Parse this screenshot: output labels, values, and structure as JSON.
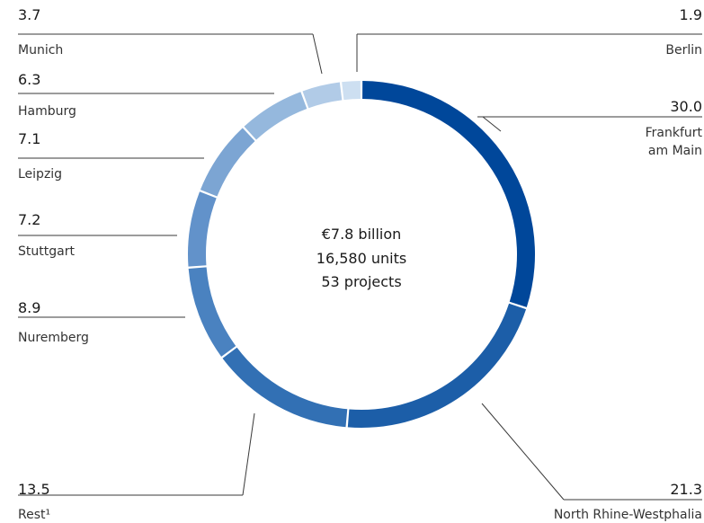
{
  "chart_data": {
    "type": "pie",
    "donut": true,
    "legend": "none",
    "center_lines": [
      "€7.8 billion",
      "16,580 units",
      "53 projects"
    ],
    "slices": [
      {
        "label": "Frankfurt am Main",
        "label_lines": [
          "Frankfurt",
          "am Main"
        ],
        "value": 30.0,
        "value_text": "30.0",
        "color": "#00479a"
      },
      {
        "label": "North Rhine-Westphalia",
        "label_lines": [
          "North Rhine-Westphalia"
        ],
        "value": 21.3,
        "value_text": "21.3",
        "color": "#1c5ea8"
      },
      {
        "label": "Rest¹",
        "label_lines": [
          "Rest¹"
        ],
        "value": 13.5,
        "value_text": "13.5",
        "color": "#3270b4"
      },
      {
        "label": "Nuremberg",
        "label_lines": [
          "Nuremberg"
        ],
        "value": 8.9,
        "value_text": "8.9",
        "color": "#4a82c0"
      },
      {
        "label": "Stuttgart",
        "label_lines": [
          "Stuttgart"
        ],
        "value": 7.2,
        "value_text": "7.2",
        "color": "#6292ca"
      },
      {
        "label": "Leipzig",
        "label_lines": [
          "Leipzig"
        ],
        "value": 7.1,
        "value_text": "7.1",
        "color": "#7ca5d3"
      },
      {
        "label": "Hamburg",
        "label_lines": [
          "Hamburg"
        ],
        "value": 6.3,
        "value_text": "6.3",
        "color": "#95b8dd"
      },
      {
        "label": "Munich",
        "label_lines": [
          "Munich"
        ],
        "value": 3.7,
        "value_text": "3.7",
        "color": "#b1cbe7"
      },
      {
        "label": "Berlin",
        "label_lines": [
          "Berlin"
        ],
        "value": 1.9,
        "value_text": "1.9",
        "color": "#cddff1"
      }
    ]
  }
}
